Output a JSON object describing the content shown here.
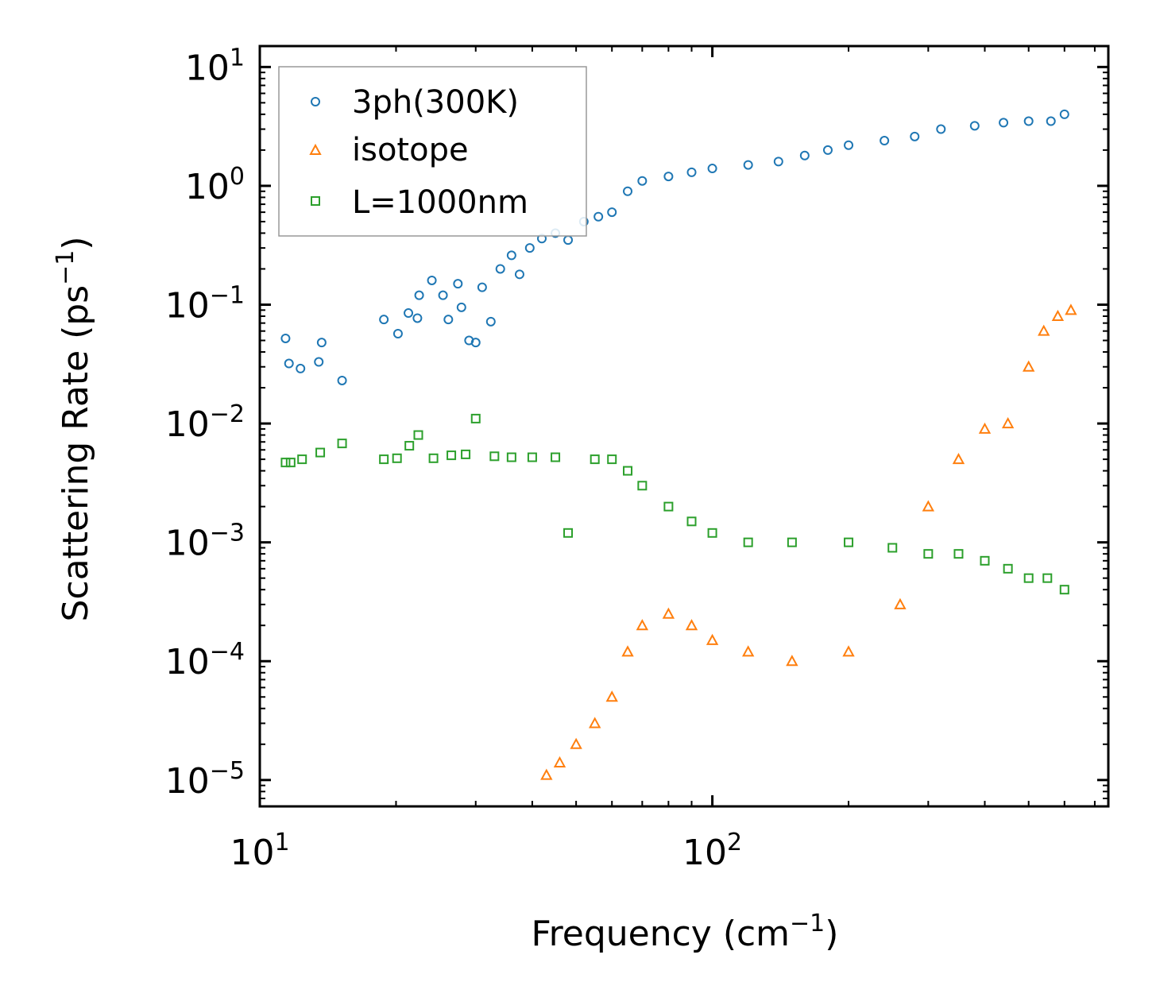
{
  "chart_data": {
    "type": "scatter",
    "xscale": "log",
    "yscale": "log",
    "xlim": [
      10,
      750
    ],
    "ylim": [
      6e-06,
      15
    ],
    "xlabel": "Frequency (cm",
    "xlabel_exp": "−1",
    "xlabel_close": ")",
    "ylabel": "Scattering Rate (ps",
    "ylabel_exp": "−1",
    "ylabel_close": ")",
    "xticks": [
      {
        "value": 10,
        "base": "10",
        "exp": "1"
      },
      {
        "value": 100,
        "base": "10",
        "exp": "2"
      }
    ],
    "yticks": [
      {
        "value": 10,
        "base": "10",
        "exp": "1"
      },
      {
        "value": 1,
        "base": "10",
        "exp": "0"
      },
      {
        "value": 0.1,
        "base": "10",
        "exp": "−1"
      },
      {
        "value": 0.01,
        "base": "10",
        "exp": "−2"
      },
      {
        "value": 0.001,
        "base": "10",
        "exp": "−3"
      },
      {
        "value": 0.0001,
        "base": "10",
        "exp": "−4"
      },
      {
        "value": 1e-05,
        "base": "10",
        "exp": "−5"
      }
    ],
    "legend_position": "top-left",
    "series": [
      {
        "name": "3ph(300K)",
        "marker": "circle",
        "color": "#1f77b4",
        "points": [
          [
            11.4,
            0.052
          ],
          [
            11.6,
            0.032
          ],
          [
            12.3,
            0.029
          ],
          [
            13.5,
            0.033
          ],
          [
            13.7,
            0.048
          ],
          [
            15.2,
            0.023
          ],
          [
            18.8,
            0.075
          ],
          [
            20.2,
            0.057
          ],
          [
            21.3,
            0.085
          ],
          [
            22.3,
            0.077
          ],
          [
            22.5,
            0.12
          ],
          [
            24.0,
            0.16
          ],
          [
            25.4,
            0.12
          ],
          [
            26.1,
            0.075
          ],
          [
            27.4,
            0.15
          ],
          [
            27.9,
            0.095
          ],
          [
            29.0,
            0.05
          ],
          [
            30.0,
            0.048
          ],
          [
            31.0,
            0.14
          ],
          [
            32.4,
            0.072
          ],
          [
            34.0,
            0.2
          ],
          [
            36.0,
            0.26
          ],
          [
            37.5,
            0.18
          ],
          [
            39.5,
            0.3
          ],
          [
            42.0,
            0.36
          ],
          [
            45.0,
            0.4
          ],
          [
            48.0,
            0.35
          ],
          [
            52.0,
            0.5
          ],
          [
            56.0,
            0.55
          ],
          [
            60.0,
            0.6
          ],
          [
            65.0,
            0.9
          ],
          [
            70.0,
            1.1
          ],
          [
            80.0,
            1.2
          ],
          [
            90.0,
            1.3
          ],
          [
            100.0,
            1.4
          ],
          [
            120.0,
            1.5
          ],
          [
            140.0,
            1.6
          ],
          [
            160.0,
            1.8
          ],
          [
            180.0,
            2.0
          ],
          [
            200.0,
            2.2
          ],
          [
            240.0,
            2.4
          ],
          [
            280.0,
            2.6
          ],
          [
            320.0,
            3.0
          ],
          [
            380.0,
            3.2
          ],
          [
            440.0,
            3.4
          ],
          [
            500.0,
            3.5
          ],
          [
            560.0,
            3.5
          ],
          [
            600.0,
            4.0
          ]
        ]
      },
      {
        "name": "isotope",
        "marker": "triangle",
        "color": "#ff7f0e",
        "points": [
          [
            43.0,
            1.1e-05
          ],
          [
            46.0,
            1.4e-05
          ],
          [
            50.0,
            2e-05
          ],
          [
            55.0,
            3e-05
          ],
          [
            60.0,
            5e-05
          ],
          [
            65.0,
            0.00012
          ],
          [
            70.0,
            0.0002
          ],
          [
            80.0,
            0.00025
          ],
          [
            90.0,
            0.0002
          ],
          [
            100.0,
            0.00015
          ],
          [
            120.0,
            0.00012
          ],
          [
            150.0,
            0.0001
          ],
          [
            200.0,
            0.00012
          ],
          [
            260.0,
            0.0003
          ],
          [
            300.0,
            0.002
          ],
          [
            350.0,
            0.005
          ],
          [
            400.0,
            0.009
          ],
          [
            450.0,
            0.01
          ],
          [
            500.0,
            0.03
          ],
          [
            540.0,
            0.06
          ],
          [
            580.0,
            0.08
          ],
          [
            620.0,
            0.09
          ]
        ]
      },
      {
        "name": "L=1000nm",
        "marker": "square",
        "color": "#2ca02c",
        "points": [
          [
            11.4,
            0.0047
          ],
          [
            11.7,
            0.0047
          ],
          [
            12.4,
            0.005
          ],
          [
            13.6,
            0.0057
          ],
          [
            15.2,
            0.0068
          ],
          [
            18.8,
            0.005
          ],
          [
            20.1,
            0.0051
          ],
          [
            21.4,
            0.0065
          ],
          [
            22.4,
            0.008
          ],
          [
            24.2,
            0.0051
          ],
          [
            26.5,
            0.0054
          ],
          [
            28.5,
            0.0055
          ],
          [
            30.0,
            0.011
          ],
          [
            33.0,
            0.0053
          ],
          [
            36.0,
            0.0052
          ],
          [
            40.0,
            0.0052
          ],
          [
            45.0,
            0.0052
          ],
          [
            48.0,
            0.0012
          ],
          [
            55.0,
            0.005
          ],
          [
            60.0,
            0.005
          ],
          [
            65.0,
            0.004
          ],
          [
            70.0,
            0.003
          ],
          [
            80.0,
            0.002
          ],
          [
            90.0,
            0.0015
          ],
          [
            100.0,
            0.0012
          ],
          [
            120.0,
            0.001
          ],
          [
            150.0,
            0.001
          ],
          [
            200.0,
            0.001
          ],
          [
            250.0,
            0.0009
          ],
          [
            300.0,
            0.0008
          ],
          [
            350.0,
            0.0008
          ],
          [
            400.0,
            0.0007
          ],
          [
            450.0,
            0.0006
          ],
          [
            500.0,
            0.0005
          ],
          [
            550.0,
            0.0005
          ],
          [
            600.0,
            0.0004
          ]
        ]
      }
    ]
  }
}
